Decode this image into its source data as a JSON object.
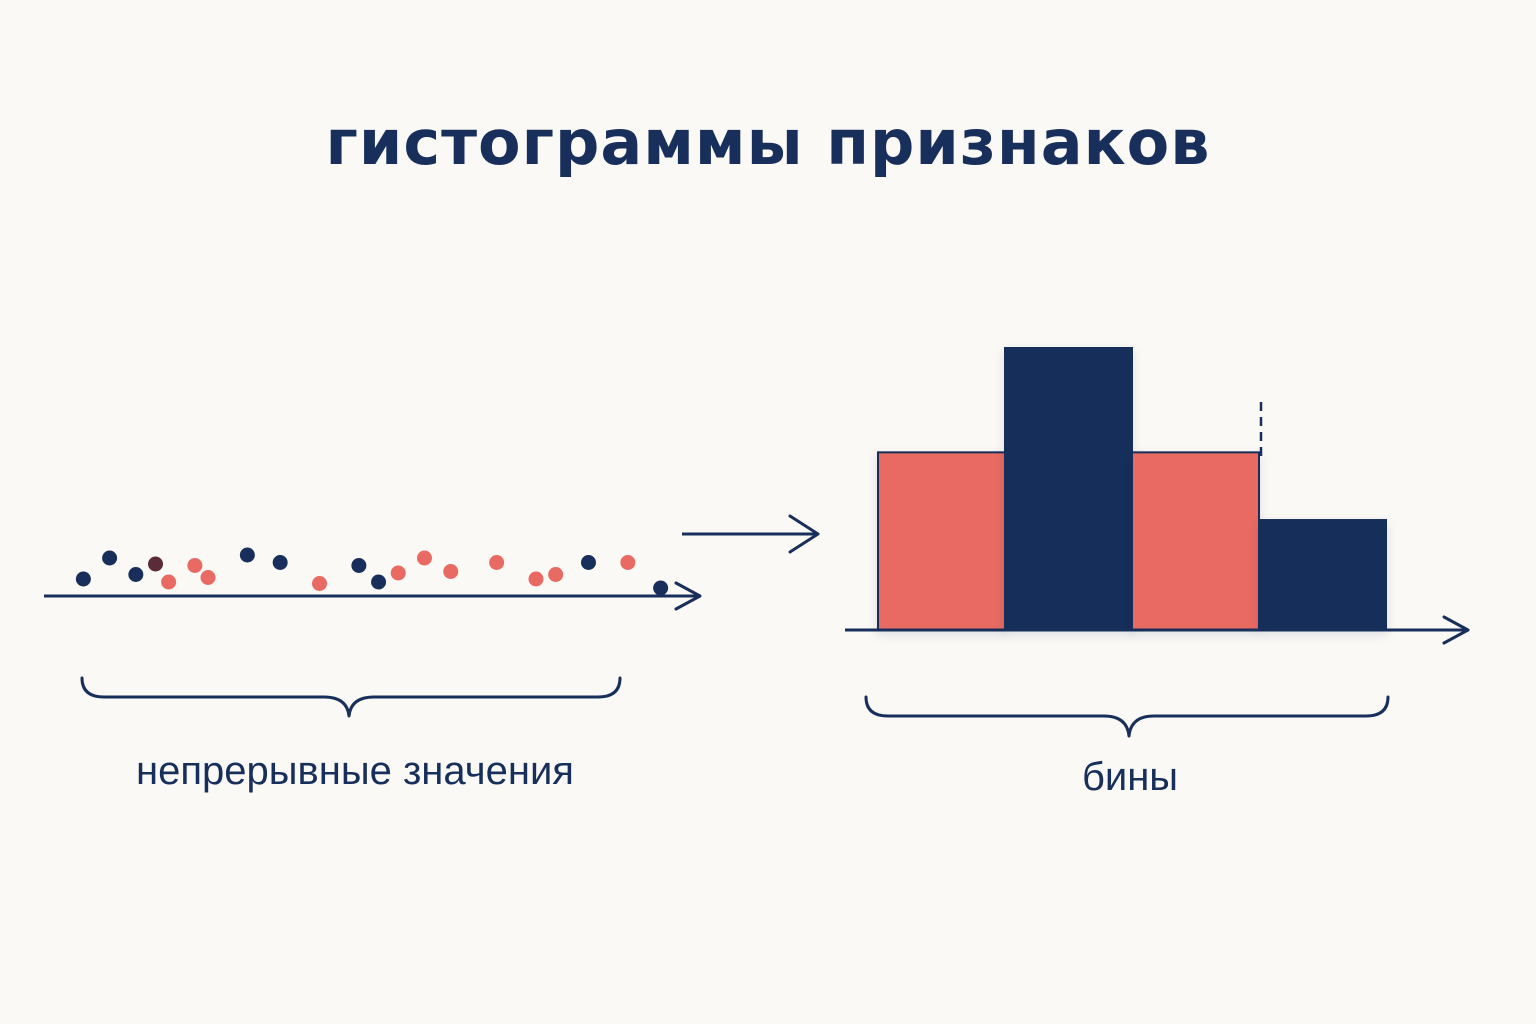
{
  "title": "гистограммы признаков",
  "left_panel": {
    "caption": "непрерывные значения"
  },
  "right_panel": {
    "caption": "бины"
  },
  "colors": {
    "navy": "#172f5a",
    "coral": "#e86a62",
    "plum": "#5c2b3a",
    "background": "#fbf9f5"
  },
  "histogram": {
    "bins": [
      {
        "height": 0.63,
        "color": "coral"
      },
      {
        "height": 1.0,
        "color": "navy"
      },
      {
        "height": 0.63,
        "color": "coral"
      },
      {
        "height": 0.39,
        "color": "navy"
      }
    ]
  },
  "points": [
    {
      "value": 0.06,
      "level": 0.3,
      "color": "navy"
    },
    {
      "value": 0.1,
      "level": 1.0,
      "color": "navy"
    },
    {
      "value": 0.14,
      "level": 0.45,
      "color": "navy"
    },
    {
      "value": 0.17,
      "level": 0.8,
      "color": "plum"
    },
    {
      "value": 0.19,
      "level": 0.2,
      "color": "coral"
    },
    {
      "value": 0.23,
      "level": 0.75,
      "color": "coral"
    },
    {
      "value": 0.25,
      "level": 0.35,
      "color": "coral"
    },
    {
      "value": 0.31,
      "level": 1.1,
      "color": "navy"
    },
    {
      "value": 0.36,
      "level": 0.85,
      "color": "navy"
    },
    {
      "value": 0.42,
      "level": 0.15,
      "color": "coral"
    },
    {
      "value": 0.48,
      "level": 0.75,
      "color": "navy"
    },
    {
      "value": 0.51,
      "level": 0.2,
      "color": "navy"
    },
    {
      "value": 0.54,
      "level": 0.5,
      "color": "coral"
    },
    {
      "value": 0.58,
      "level": 1.0,
      "color": "coral"
    },
    {
      "value": 0.62,
      "level": 0.55,
      "color": "coral"
    },
    {
      "value": 0.69,
      "level": 0.85,
      "color": "coral"
    },
    {
      "value": 0.75,
      "level": 0.3,
      "color": "coral"
    },
    {
      "value": 0.78,
      "level": 0.45,
      "color": "coral"
    },
    {
      "value": 0.83,
      "level": 0.85,
      "color": "navy"
    },
    {
      "value": 0.89,
      "level": 0.85,
      "color": "coral"
    },
    {
      "value": 0.94,
      "level": 0.0,
      "color": "navy"
    }
  ]
}
